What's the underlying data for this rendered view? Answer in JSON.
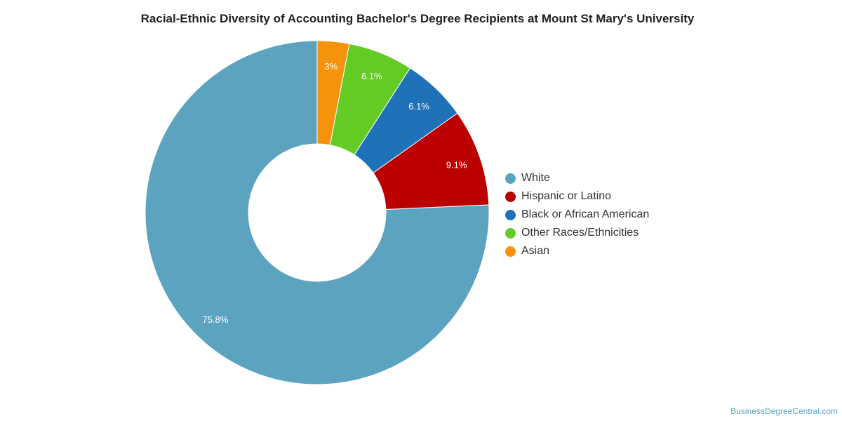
{
  "chart_data": {
    "type": "pie",
    "title": "Racial-Ethnic Diversity of Accounting Bachelor's Degree Recipients at Mount St Mary's University",
    "donut": true,
    "legend_position": "right",
    "categories": [
      "White",
      "Hispanic or Latino",
      "Black or African American",
      "Other Races/Ethnicities",
      "Asian"
    ],
    "values": [
      75.8,
      9.1,
      6.1,
      6.1,
      3
    ],
    "labels": [
      "75.8%",
      "9.1%",
      "6.1%",
      "6.1%",
      "3%"
    ],
    "colors": [
      "#5ca3c0",
      "#bb0000",
      "#1f72b8",
      "#62cc24",
      "#f6930d"
    ]
  },
  "source": "BusinessDegreeCentral.com"
}
